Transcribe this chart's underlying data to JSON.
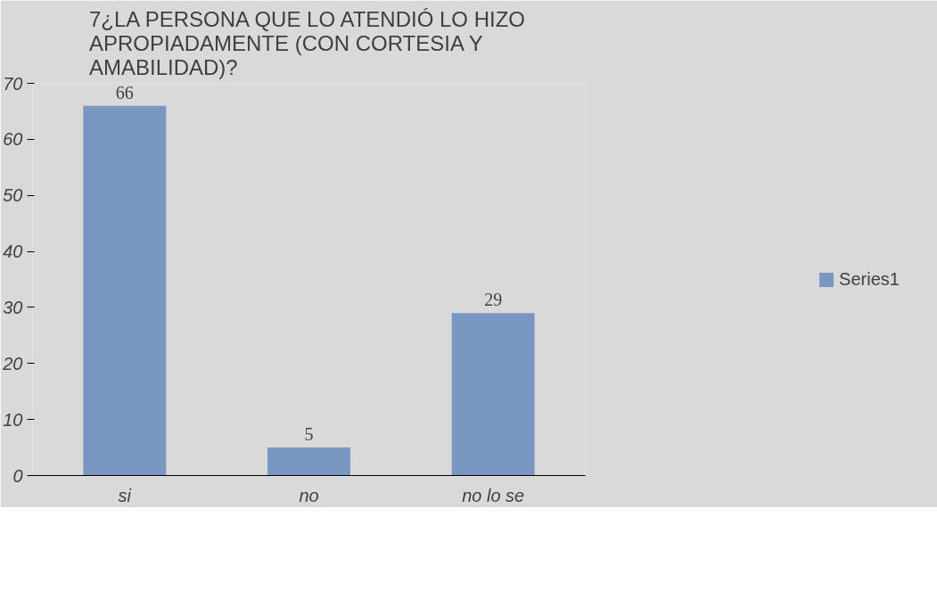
{
  "chart_data": {
    "type": "bar",
    "title": "7¿LA PERSONA QUE LO ATENDIÓ LO HIZO APROPIADAMENTE (CON CORTESIA Y AMABILIDAD)?",
    "categories": [
      "si",
      "no",
      "no lo se"
    ],
    "series": [
      {
        "name": "Series1",
        "color": "#7a97c2",
        "values": [
          66,
          5,
          29
        ]
      }
    ],
    "ylim": [
      0,
      70
    ],
    "yticks": [
      0,
      10,
      20,
      30,
      40,
      50,
      60,
      70
    ],
    "data_labels": true,
    "legend": "right",
    "grid": false
  }
}
